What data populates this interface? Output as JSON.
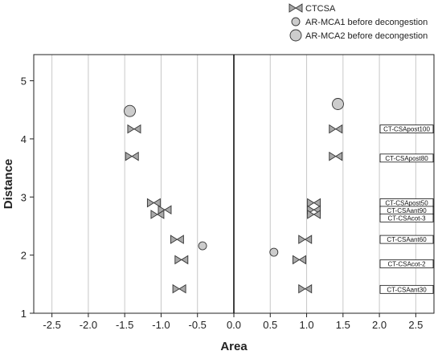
{
  "chart_data": {
    "type": "scatter",
    "xlabel": "Area",
    "ylabel": "Distance",
    "xlim": [
      -2.75,
      2.75
    ],
    "ylim": [
      1,
      5.45
    ],
    "xticks": [
      "-2.5",
      "-2.0",
      "-1.5",
      "-1.0",
      "-0.5",
      "0.0",
      "0.5",
      "1.0",
      "1.5",
      "2.0",
      "2.5"
    ],
    "yticks": [
      "1",
      "2",
      "3",
      "4",
      "5"
    ],
    "grid": "vertical",
    "legend_position": "top-right",
    "series": [
      {
        "name": "CTCSA",
        "marker": "bowtie",
        "color": "#a9a9a9",
        "points": [
          {
            "x": -1.37,
            "y": 4.17
          },
          {
            "x": -1.4,
            "y": 3.7
          },
          {
            "x": -1.1,
            "y": 2.9
          },
          {
            "x": -0.95,
            "y": 2.78
          },
          {
            "x": -1.05,
            "y": 2.7
          },
          {
            "x": -0.78,
            "y": 2.27
          },
          {
            "x": -0.72,
            "y": 1.92
          },
          {
            "x": -0.75,
            "y": 1.42
          },
          {
            "x": 1.4,
            "y": 4.17
          },
          {
            "x": 1.4,
            "y": 3.7
          },
          {
            "x": 1.1,
            "y": 2.9
          },
          {
            "x": 1.1,
            "y": 2.78
          },
          {
            "x": 1.1,
            "y": 2.7
          },
          {
            "x": 0.98,
            "y": 2.27
          },
          {
            "x": 0.9,
            "y": 1.92
          },
          {
            "x": 0.98,
            "y": 1.42
          }
        ]
      },
      {
        "name": "AR-MCA1 before decongestion",
        "marker": "circle-small",
        "color": "#cccccc",
        "points": [
          {
            "x": -0.43,
            "y": 2.16
          },
          {
            "x": 0.55,
            "y": 2.05
          }
        ]
      },
      {
        "name": "AR-MCA2 before decongestion",
        "marker": "circle-large",
        "color": "#cccccc",
        "points": [
          {
            "x": -1.43,
            "y": 4.48
          },
          {
            "x": 1.43,
            "y": 4.6
          }
        ]
      }
    ],
    "annotations": [
      {
        "text": "CT-CSApost100",
        "y": 4.17
      },
      {
        "text": "CT-CSApost80",
        "y": 3.67
      },
      {
        "text": "CT-CSApost50",
        "y": 2.9
      },
      {
        "text": "CT-CSAant90",
        "y": 2.77
      },
      {
        "text": "CT-CSAcot-3",
        "y": 2.64
      },
      {
        "text": "CT-CSAant60",
        "y": 2.27
      },
      {
        "text": "CT-CSAcot-2",
        "y": 1.85
      },
      {
        "text": "CT-CSAant30",
        "y": 1.41
      }
    ]
  }
}
